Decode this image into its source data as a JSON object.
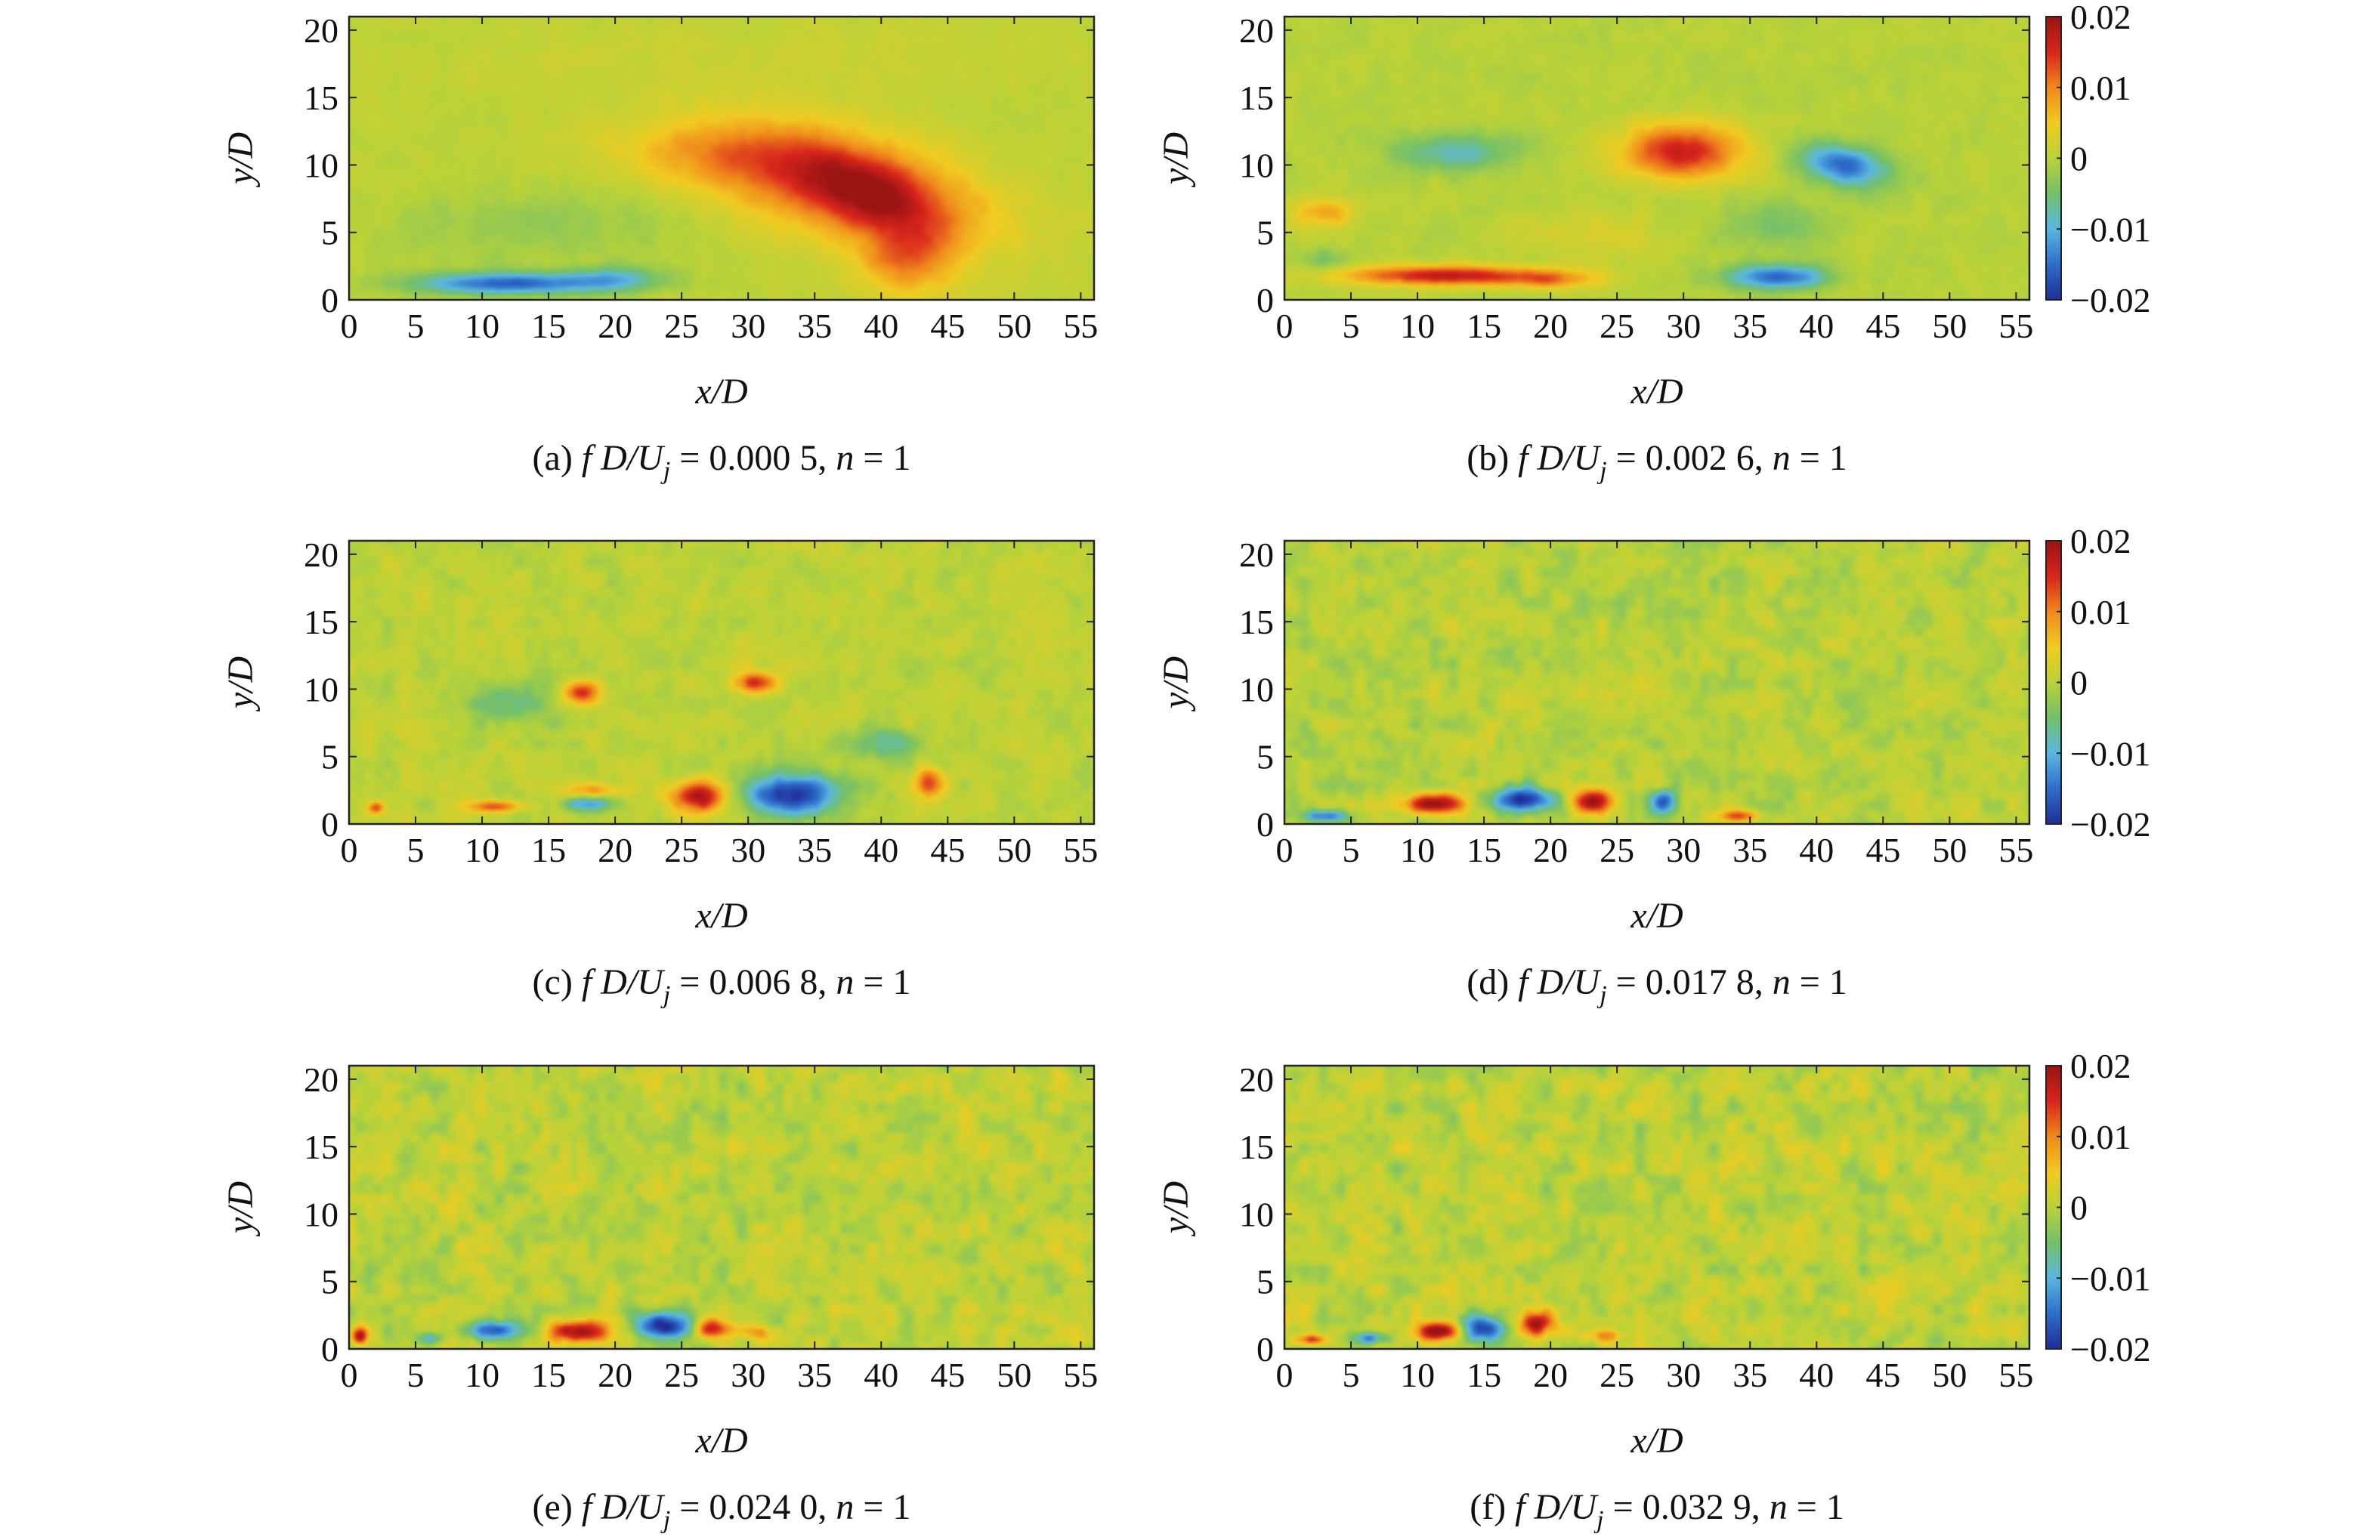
{
  "colormap": [
    "#1f2f9a",
    "#2f6fcc",
    "#5ab7e0",
    "#74c06a",
    "#b8d23a",
    "#f0cc22",
    "#f08a1c",
    "#d9261c",
    "#9b1414"
  ],
  "background_color": "#ffffff",
  "colorbar": {
    "range": [
      -0.02,
      0.02
    ],
    "tick_values": [
      0.02,
      0.01,
      0,
      -0.01,
      -0.02
    ],
    "tick_labels": [
      "0.02",
      "0.01",
      "0",
      "−0.01",
      "−0.02"
    ]
  },
  "chart_data": [
    {
      "type": "heatmap",
      "id": "a",
      "caption": {
        "prefix": "(a) ",
        "f": "f",
        "dd": " D",
        "u": "/U",
        "sub": "j",
        "eq": " = ",
        "value": "0.000 5",
        "sep": ", ",
        "n": "n",
        "neq": " = 1"
      },
      "xlabel": "x/D",
      "ylabel": "y/D",
      "xlim": [
        0,
        56
      ],
      "ylim": [
        0,
        21
      ],
      "xticks": [
        0,
        5,
        10,
        15,
        20,
        25,
        30,
        35,
        40,
        45,
        50,
        55
      ],
      "yticks": [
        0,
        5,
        10,
        15,
        20
      ],
      "colorbar": false,
      "noise": 0.001,
      "background": 0.0005,
      "features": [
        {
          "x": 37,
          "y": 8.5,
          "sx": 12,
          "sy": 4.2,
          "rot": -12,
          "v": 0.013
        },
        {
          "x": 39,
          "y": 8,
          "sx": 6,
          "sy": 2.5,
          "rot": -20,
          "v": 0.009
        },
        {
          "x": 42,
          "y": 3,
          "sx": 4,
          "sy": 3,
          "rot": 0,
          "v": 0.009
        },
        {
          "x": 28,
          "y": 11,
          "sx": 9,
          "sy": 2.5,
          "rot": 0,
          "v": 0.005
        },
        {
          "x": 12,
          "y": 1.2,
          "sx": 8,
          "sy": 0.9,
          "rot": 0,
          "v": -0.016
        },
        {
          "x": 20,
          "y": 1.6,
          "sx": 4,
          "sy": 1,
          "rot": 0,
          "v": -0.008
        },
        {
          "x": 14,
          "y": 5.5,
          "sx": 12,
          "sy": 3,
          "rot": 0,
          "v": -0.003
        },
        {
          "x": 30,
          "y": 18,
          "sx": 25,
          "sy": 3,
          "rot": 0,
          "v": 0.001
        }
      ]
    },
    {
      "type": "heatmap",
      "id": "b",
      "caption": {
        "prefix": "(b) ",
        "f": "f",
        "dd": " D",
        "u": "/U",
        "sub": "j",
        "eq": " = ",
        "value": "0.002 6",
        "sep": ", ",
        "n": "n",
        "neq": " = 1"
      },
      "xlabel": "x/D",
      "ylabel": "y/D",
      "xlim": [
        0,
        56
      ],
      "ylim": [
        0,
        21
      ],
      "xticks": [
        0,
        5,
        10,
        15,
        20,
        25,
        30,
        35,
        40,
        45,
        50,
        55
      ],
      "yticks": [
        0,
        5,
        10,
        15,
        20
      ],
      "colorbar": true,
      "noise": 0.0012,
      "background": 0.0,
      "features": [
        {
          "x": 30,
          "y": 11,
          "sx": 5,
          "sy": 2.2,
          "rot": 0,
          "v": 0.016
        },
        {
          "x": 13,
          "y": 11,
          "sx": 5,
          "sy": 1.5,
          "rot": 0,
          "v": -0.008
        },
        {
          "x": 42,
          "y": 10,
          "sx": 3.5,
          "sy": 1.6,
          "rot": -10,
          "v": -0.016
        },
        {
          "x": 12,
          "y": 1.8,
          "sx": 8,
          "sy": 0.8,
          "rot": 0,
          "v": 0.017
        },
        {
          "x": 20,
          "y": 1.5,
          "sx": 4,
          "sy": 0.8,
          "rot": 0,
          "v": 0.008
        },
        {
          "x": 37,
          "y": 1.7,
          "sx": 4,
          "sy": 1,
          "rot": 0,
          "v": -0.016
        },
        {
          "x": 3,
          "y": 6.5,
          "sx": 2.5,
          "sy": 1.2,
          "rot": 0,
          "v": 0.008
        },
        {
          "x": 37,
          "y": 5.5,
          "sx": 4,
          "sy": 2,
          "rot": 0,
          "v": -0.005
        },
        {
          "x": 23,
          "y": 5,
          "sx": 6,
          "sy": 2,
          "rot": 0,
          "v": 0.003
        },
        {
          "x": 3,
          "y": 3,
          "sx": 2,
          "sy": 1,
          "rot": 0,
          "v": -0.004
        }
      ]
    },
    {
      "type": "heatmap",
      "id": "c",
      "caption": {
        "prefix": "(c) ",
        "f": "f",
        "dd": " D",
        "u": "/U",
        "sub": "j",
        "eq": " = ",
        "value": "0.006 8",
        "sep": ", ",
        "n": "n",
        "neq": " = 1"
      },
      "xlabel": "x/D",
      "ylabel": "y/D",
      "xlim": [
        0,
        56
      ],
      "ylim": [
        0,
        21
      ],
      "xticks": [
        0,
        5,
        10,
        15,
        20,
        25,
        30,
        35,
        40,
        45,
        50,
        55
      ],
      "yticks": [
        0,
        5,
        10,
        15,
        20
      ],
      "colorbar": false,
      "noise": 0.0022,
      "background": 0.0005,
      "features": [
        {
          "x": 26.5,
          "y": 2,
          "sx": 2.5,
          "sy": 1.3,
          "rot": 0,
          "v": 0.02
        },
        {
          "x": 33,
          "y": 2.2,
          "sx": 4.5,
          "sy": 1.7,
          "rot": 0,
          "v": -0.02
        },
        {
          "x": 18,
          "y": 1.5,
          "sx": 2,
          "sy": 0.6,
          "rot": 0,
          "v": -0.012
        },
        {
          "x": 11,
          "y": 1.3,
          "sx": 2,
          "sy": 0.5,
          "rot": 0,
          "v": 0.014
        },
        {
          "x": 17.5,
          "y": 9.8,
          "sx": 1.5,
          "sy": 1,
          "rot": 0,
          "v": 0.015
        },
        {
          "x": 30.5,
          "y": 10.5,
          "sx": 1.8,
          "sy": 0.9,
          "rot": 0,
          "v": 0.015
        },
        {
          "x": 43.5,
          "y": 3,
          "sx": 1.2,
          "sy": 1.2,
          "rot": 0,
          "v": 0.012
        },
        {
          "x": 12,
          "y": 9,
          "sx": 4,
          "sy": 2,
          "rot": 0,
          "v": -0.006
        },
        {
          "x": 40,
          "y": 6,
          "sx": 3,
          "sy": 1.2,
          "rot": 0,
          "v": -0.007
        },
        {
          "x": 18.5,
          "y": 2.5,
          "sx": 2.5,
          "sy": 0.6,
          "rot": 0,
          "v": 0.008
        },
        {
          "x": 2,
          "y": 1.2,
          "sx": 0.7,
          "sy": 0.5,
          "rot": 0,
          "v": 0.012
        }
      ]
    },
    {
      "type": "heatmap",
      "id": "d",
      "caption": {
        "prefix": "(d) ",
        "f": "f",
        "dd": " D",
        "u": "/U",
        "sub": "j",
        "eq": " = ",
        "value": "0.017 8",
        "sep": ", ",
        "n": "n",
        "neq": " = 1"
      },
      "xlabel": "x/D",
      "ylabel": "y/D",
      "xlim": [
        0,
        56
      ],
      "ylim": [
        0,
        21
      ],
      "xticks": [
        0,
        5,
        10,
        15,
        20,
        25,
        30,
        35,
        40,
        45,
        50,
        55
      ],
      "yticks": [
        0,
        5,
        10,
        15,
        20
      ],
      "colorbar": true,
      "noise": 0.0032,
      "background": 0.0,
      "features": [
        {
          "x": 11.5,
          "y": 1.5,
          "sx": 2.5,
          "sy": 0.8,
          "rot": 0,
          "v": 0.02
        },
        {
          "x": 18,
          "y": 1.8,
          "sx": 2.8,
          "sy": 1,
          "rot": 0,
          "v": -0.02
        },
        {
          "x": 23,
          "y": 1.7,
          "sx": 1.8,
          "sy": 1,
          "rot": 0,
          "v": 0.02
        },
        {
          "x": 28.5,
          "y": 1.6,
          "sx": 1.1,
          "sy": 1,
          "rot": 0,
          "v": -0.018
        },
        {
          "x": 34,
          "y": 0.6,
          "sx": 1.6,
          "sy": 0.5,
          "rot": 0,
          "v": 0.014
        },
        {
          "x": 3,
          "y": 0.6,
          "sx": 2,
          "sy": 0.5,
          "rot": 0,
          "v": -0.014
        }
      ]
    },
    {
      "type": "heatmap",
      "id": "e",
      "caption": {
        "prefix": "(e) ",
        "f": "f",
        "dd": " D",
        "u": "/U",
        "sub": "j",
        "eq": " = ",
        "value": "0.024 0",
        "sep": ", ",
        "n": "n",
        "neq": " = 1"
      },
      "xlabel": "x/D",
      "ylabel": "y/D",
      "xlim": [
        0,
        56
      ],
      "ylim": [
        0,
        21
      ],
      "xticks": [
        0,
        5,
        10,
        15,
        20,
        25,
        30,
        35,
        40,
        45,
        50,
        55
      ],
      "yticks": [
        0,
        5,
        10,
        15,
        20
      ],
      "colorbar": false,
      "noise": 0.0038,
      "background": 0.0005,
      "features": [
        {
          "x": 17.5,
          "y": 1.3,
          "sx": 2.5,
          "sy": 0.9,
          "rot": 0,
          "v": 0.02
        },
        {
          "x": 23.5,
          "y": 1.8,
          "sx": 2.3,
          "sy": 1.2,
          "rot": 0,
          "v": -0.02
        },
        {
          "x": 11,
          "y": 1.4,
          "sx": 2.5,
          "sy": 0.7,
          "rot": 0,
          "v": -0.016
        },
        {
          "x": 27.5,
          "y": 1.5,
          "sx": 1.5,
          "sy": 0.8,
          "rot": 0,
          "v": 0.016
        },
        {
          "x": 0.8,
          "y": 1,
          "sx": 0.7,
          "sy": 0.7,
          "rot": 0,
          "v": 0.018
        },
        {
          "x": 31,
          "y": 1.2,
          "sx": 1.4,
          "sy": 0.6,
          "rot": 0,
          "v": 0.009
        },
        {
          "x": 6,
          "y": 0.8,
          "sx": 1,
          "sy": 0.5,
          "rot": 0,
          "v": -0.01
        }
      ]
    },
    {
      "type": "heatmap",
      "id": "f",
      "caption": {
        "prefix": "(f) ",
        "f": "f",
        "dd": " D",
        "u": "/U",
        "sub": "j",
        "eq": " = ",
        "value": "0.032 9",
        "sep": ", ",
        "n": "n",
        "neq": " = 1"
      },
      "xlabel": "x/D",
      "ylabel": "y/D",
      "xlim": [
        0,
        56
      ],
      "ylim": [
        0,
        21
      ],
      "xticks": [
        0,
        5,
        10,
        15,
        20,
        25,
        30,
        35,
        40,
        45,
        50,
        55
      ],
      "yticks": [
        0,
        5,
        10,
        15,
        20
      ],
      "colorbar": true,
      "noise": 0.004,
      "background": 0.0005,
      "features": [
        {
          "x": 11.5,
          "y": 1.3,
          "sx": 2,
          "sy": 0.8,
          "rot": 0,
          "v": 0.02
        },
        {
          "x": 15,
          "y": 1.5,
          "sx": 2,
          "sy": 1.1,
          "rot": 0,
          "v": -0.02
        },
        {
          "x": 19,
          "y": 1.8,
          "sx": 1.4,
          "sy": 1,
          "rot": 0,
          "v": 0.018
        },
        {
          "x": 6.5,
          "y": 0.8,
          "sx": 1.5,
          "sy": 0.5,
          "rot": 0,
          "v": -0.014
        },
        {
          "x": 2,
          "y": 0.7,
          "sx": 1.1,
          "sy": 0.4,
          "rot": 0,
          "v": 0.014
        },
        {
          "x": 24,
          "y": 1.0,
          "sx": 1.6,
          "sy": 0.5,
          "rot": 0,
          "v": 0.008
        }
      ]
    }
  ]
}
